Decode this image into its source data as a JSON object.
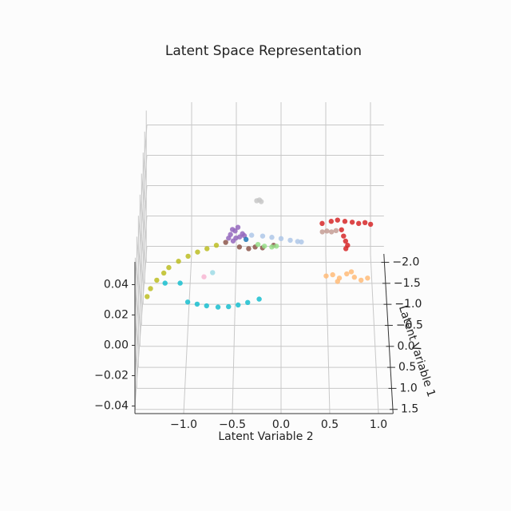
{
  "chart_data": {
    "type": "scatter3d",
    "title": "Latent Space Representation",
    "xlabel": "Latent Variable 2",
    "ylabel": "Latent Variable 1",
    "xlim": [
      -1.5,
      1.15
    ],
    "ylim": [
      -2.2,
      1.6
    ],
    "zlim": [
      -0.045,
      0.055
    ],
    "xticks": [
      {
        "value": -1.0,
        "label": "−1.0"
      },
      {
        "value": -0.5,
        "label": "−0.5"
      },
      {
        "value": 0.0,
        "label": "0.0"
      },
      {
        "value": 0.5,
        "label": "0.5"
      },
      {
        "value": 1.0,
        "label": "1.0"
      }
    ],
    "yticks": [
      {
        "value": -2.0,
        "label": "−2.0"
      },
      {
        "value": -1.5,
        "label": "−1.5"
      },
      {
        "value": -1.0,
        "label": "−1.0"
      },
      {
        "value": -0.5,
        "label": "−0.5"
      },
      {
        "value": 0.0,
        "label": "0.0"
      },
      {
        "value": 0.5,
        "label": "0.5"
      },
      {
        "value": 1.0,
        "label": "1.0"
      },
      {
        "value": 1.5,
        "label": "1.5"
      }
    ],
    "zticks": [
      {
        "value": -0.04,
        "label": "−0.04"
      },
      {
        "value": -0.02,
        "label": "−0.02"
      },
      {
        "value": 0.0,
        "label": "0.00"
      },
      {
        "value": 0.02,
        "label": "0.02"
      },
      {
        "value": 0.04,
        "label": "0.04"
      }
    ],
    "grid": true,
    "series": [
      {
        "color": "#9467bd",
        "x": [
          -0.55,
          -0.5,
          -0.45,
          -0.52,
          -0.47,
          -0.42,
          -0.57,
          -0.49,
          -0.4,
          -0.53
        ],
        "y": [
          -1.0,
          -1.05,
          -0.98,
          -0.92,
          -1.1,
          -1.02,
          -0.95,
          -0.88,
          -1.08,
          -1.12
        ],
        "z": [
          0.001,
          0.002,
          0,
          -0.001,
          0.003,
          0.001,
          0,
          0.002,
          -0.002,
          0.001
        ]
      },
      {
        "color": "#aec7e8",
        "x": [
          -0.32,
          -0.2,
          -0.1,
          0,
          0.1,
          0.18,
          0.22
        ],
        "y": [
          -1.02,
          -1.0,
          -0.97,
          -0.94,
          -0.9,
          -0.87,
          -0.86
        ],
        "z": [
          0,
          0,
          0,
          0,
          0,
          0,
          0
        ]
      },
      {
        "color": "#d62728",
        "x": [
          0.45,
          0.55,
          0.62,
          0.7,
          0.78,
          0.85,
          0.92,
          0.98,
          0.66,
          0.68,
          0.7,
          0.72,
          0.7
        ],
        "y": [
          -1.3,
          -1.35,
          -1.38,
          -1.35,
          -1.33,
          -1.3,
          -1.32,
          -1.28,
          -1.15,
          -1.0,
          -0.88,
          -0.78,
          -0.7
        ],
        "z": [
          0,
          0,
          0,
          0,
          0,
          0,
          0,
          0,
          0,
          0,
          0,
          0,
          0
        ]
      },
      {
        "color": "#c49c94",
        "x": [
          0.45,
          0.5,
          0.55,
          0.6
        ],
        "y": [
          -1.1,
          -1.12,
          -1.1,
          -1.13
        ],
        "z": [
          0,
          0,
          0,
          0
        ]
      },
      {
        "color": "#ffbb78",
        "x": [
          0.48,
          0.55,
          0.62,
          0.7,
          0.78,
          0.85,
          0.92,
          0.6,
          0.75
        ],
        "y": [
          -0.05,
          -0.08,
          0,
          -0.1,
          -0.02,
          0.05,
          0,
          0.08,
          -0.15
        ],
        "z": [
          0,
          0,
          0,
          0,
          0,
          0,
          0,
          0,
          0
        ]
      },
      {
        "color": "#bcbd22",
        "x": [
          -1.41,
          -1.38,
          -1.32,
          -1.25,
          -1.2,
          -1.1,
          -1.0,
          -0.9,
          -0.8,
          -0.7
        ],
        "y": [
          0.44,
          0.25,
          0.05,
          -0.12,
          -0.25,
          -0.4,
          -0.52,
          -0.62,
          -0.7,
          -0.78
        ],
        "z": [
          0,
          0,
          0,
          0,
          0,
          0,
          0,
          0,
          0,
          0
        ]
      },
      {
        "color": "#17becf",
        "x": [
          -1.23,
          -1.07,
          -0.98,
          -0.88,
          -0.78,
          -0.66,
          -0.55,
          -0.45,
          -0.35,
          -0.23
        ],
        "y": [
          0.12,
          0.12,
          0.57,
          0.62,
          0.66,
          0.69,
          0.68,
          0.64,
          0.58,
          0.5
        ],
        "z": [
          0,
          0,
          0,
          0,
          0,
          0,
          0,
          0,
          0,
          0
        ]
      },
      {
        "color": "#8c564b",
        "x": [
          -0.6,
          -0.45,
          -0.35,
          -0.28,
          -0.2,
          -0.08
        ],
        "y": [
          -0.85,
          -0.74,
          -0.7,
          -0.74,
          -0.72,
          -0.78
        ],
        "z": [
          0,
          0,
          0,
          0,
          0,
          0
        ]
      },
      {
        "color": "#98df8a",
        "x": [
          -0.25,
          -0.18,
          -0.1,
          -0.05
        ],
        "y": [
          -0.8,
          -0.76,
          -0.74,
          -0.76
        ],
        "z": [
          0,
          0,
          0,
          0
        ]
      },
      {
        "color": "#c7c7c7",
        "x": [
          -0.27,
          -0.24,
          -0.22
        ],
        "y": [
          -1.84,
          -1.86,
          -1.82
        ],
        "z": [
          0,
          0,
          0
        ]
      },
      {
        "color": "#f7b6d2",
        "x": [
          -0.82
        ],
        "y": [
          -0.03
        ],
        "z": [
          0
        ]
      },
      {
        "color": "#9edae5",
        "x": [
          -0.73
        ],
        "y": [
          -0.13
        ],
        "z": [
          0
        ]
      },
      {
        "color": "#1f77b4",
        "x": [
          -0.38
        ],
        "y": [
          -0.92
        ],
        "z": [
          0
        ]
      }
    ]
  }
}
